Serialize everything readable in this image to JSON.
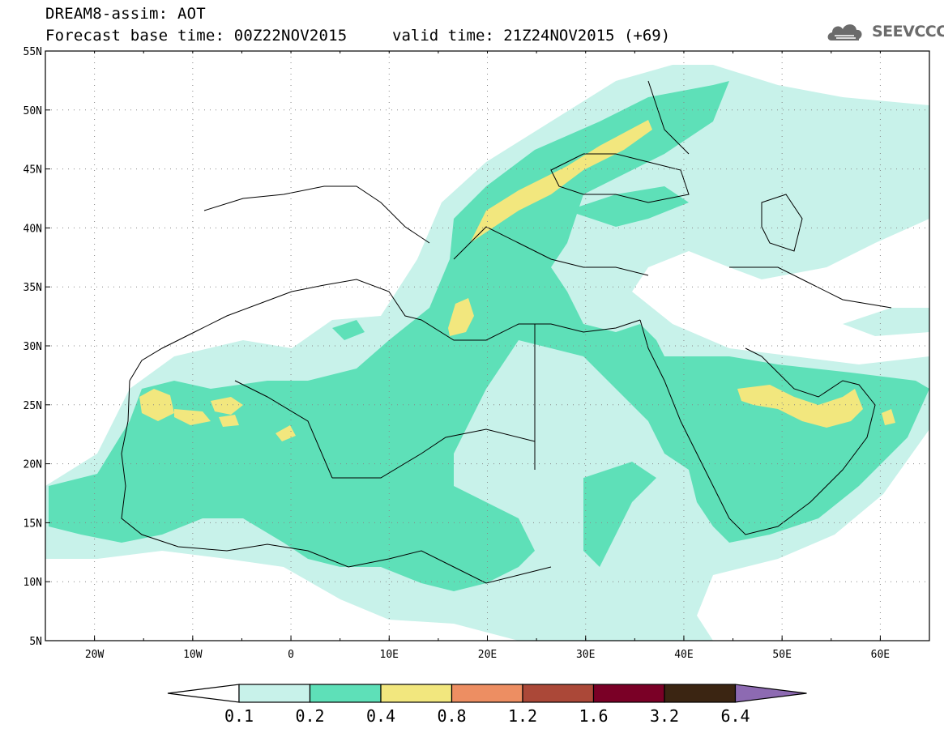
{
  "header": {
    "title": "DREAM8-assim: AOT",
    "base_time": "Forecast base time: 00Z22NOV2015",
    "valid_time": "valid time: 21Z24NOV2015 (+69)",
    "logo_text": "SEEVCCC"
  },
  "map": {
    "lon_range": [
      -25,
      65
    ],
    "lat_range": [
      5,
      55
    ],
    "lon_ticks": [
      "20W",
      "10W",
      "0",
      "10E",
      "20E",
      "30E",
      "40E",
      "50E",
      "60E"
    ],
    "lat_ticks": [
      "55N",
      "50N",
      "45N",
      "40N",
      "35N",
      "30N",
      "25N",
      "20N",
      "15N",
      "10N",
      "5N"
    ],
    "grid": true,
    "variable": "AOT"
  },
  "colorbar": {
    "levels": [
      "0.1",
      "0.2",
      "0.4",
      "0.8",
      "1.2",
      "1.6",
      "3.2",
      "6.4"
    ],
    "colors": [
      "#c8f2ea",
      "#5ee0b8",
      "#f2e77e",
      "#ed8e62",
      "#ab4838",
      "#7a0026",
      "#3b2512",
      "#8d6ab2"
    ]
  },
  "colors": {
    "lvl1": "#c8f2ea",
    "lvl2": "#5ee0b8",
    "lvl3": "#f2e77e",
    "coast": "#000000",
    "logo": "#6b6b6b"
  }
}
